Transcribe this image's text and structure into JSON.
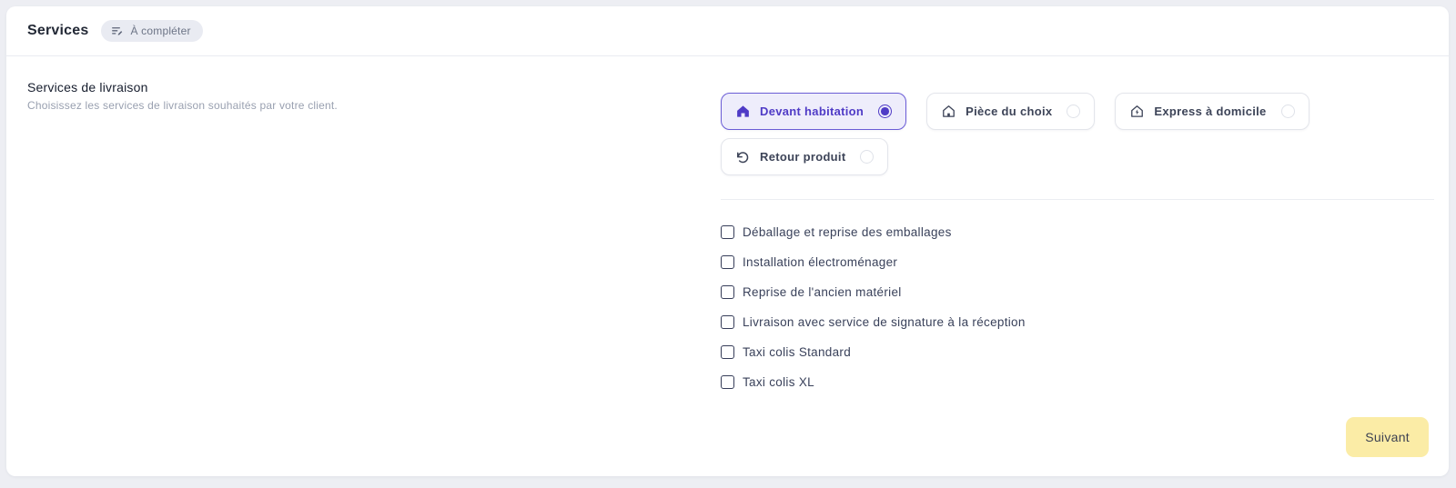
{
  "header": {
    "title": "Services",
    "badge": {
      "label": "À compléter",
      "icon": "edit-list-icon"
    }
  },
  "section": {
    "title": "Services de livraison",
    "subtitle": "Choisissez les services de livraison souhaités par votre client."
  },
  "delivery_options": [
    {
      "label": "Devant habitation",
      "icon": "house-filled-icon",
      "selected": true
    },
    {
      "label": "Pièce du choix",
      "icon": "house-door-icon",
      "selected": false
    },
    {
      "label": "Express à domicile",
      "icon": "house-bolt-icon",
      "selected": false
    },
    {
      "label": "Retour produit",
      "icon": "rotate-ccw-icon",
      "selected": false
    }
  ],
  "extra_services": [
    {
      "label": "Déballage et reprise des emballages",
      "checked": false
    },
    {
      "label": "Installation électroménager",
      "checked": false
    },
    {
      "label": "Reprise de l'ancien matériel",
      "checked": false
    },
    {
      "label": "Livraison avec service de signature à la réception",
      "checked": false
    },
    {
      "label": "Taxi colis Standard",
      "checked": false
    },
    {
      "label": "Taxi colis XL",
      "checked": false
    }
  ],
  "footer": {
    "next_label": "Suivant"
  },
  "colors": {
    "accent": "#4f3bc6",
    "accent_bg": "#eeedfb",
    "accent_border": "#6a5cd6",
    "next_button_bg": "#fbeca6",
    "next_button_text": "#3d4152",
    "page_bg": "#edeef3"
  }
}
